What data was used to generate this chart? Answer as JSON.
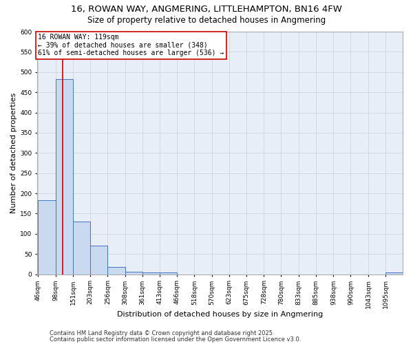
{
  "title1": "16, ROWAN WAY, ANGMERING, LITTLEHAMPTON, BN16 4FW",
  "title2": "Size of property relative to detached houses in Angmering",
  "xlabel": "Distribution of detached houses by size in Angmering",
  "ylabel": "Number of detached properties",
  "bin_edges": [
    46,
    98,
    151,
    203,
    256,
    308,
    361,
    413,
    466,
    518,
    570,
    623,
    675,
    728,
    780,
    833,
    885,
    938,
    990,
    1043,
    1095
  ],
  "bar_heights": [
    183,
    483,
    130,
    70,
    18,
    6,
    4,
    4,
    0,
    0,
    0,
    0,
    0,
    0,
    0,
    0,
    0,
    0,
    0,
    0,
    4
  ],
  "bar_color": "#c9d9f0",
  "bar_edge_color": "#4472c4",
  "grid_color": "#c8d0dc",
  "background_color": "#e8eef8",
  "red_line_x": 119,
  "red_line_color": "#cc0000",
  "annotation_line1": "16 ROWAN WAY: 119sqm",
  "annotation_line2": "← 39% of detached houses are smaller (348)",
  "annotation_line3": "61% of semi-detached houses are larger (536) →",
  "annotation_box_color": "#ffffff",
  "annotation_box_edge": "#cc0000",
  "ylim": [
    0,
    600
  ],
  "yticks": [
    0,
    50,
    100,
    150,
    200,
    250,
    300,
    350,
    400,
    450,
    500,
    550,
    600
  ],
  "footnote1": "Contains HM Land Registry data © Crown copyright and database right 2025.",
  "footnote2": "Contains public sector information licensed under the Open Government Licence v3.0.",
  "title1_fontsize": 9.5,
  "title2_fontsize": 8.5,
  "xlabel_fontsize": 8,
  "ylabel_fontsize": 8,
  "tick_fontsize": 6.5,
  "annotation_fontsize": 7,
  "footnote_fontsize": 6
}
